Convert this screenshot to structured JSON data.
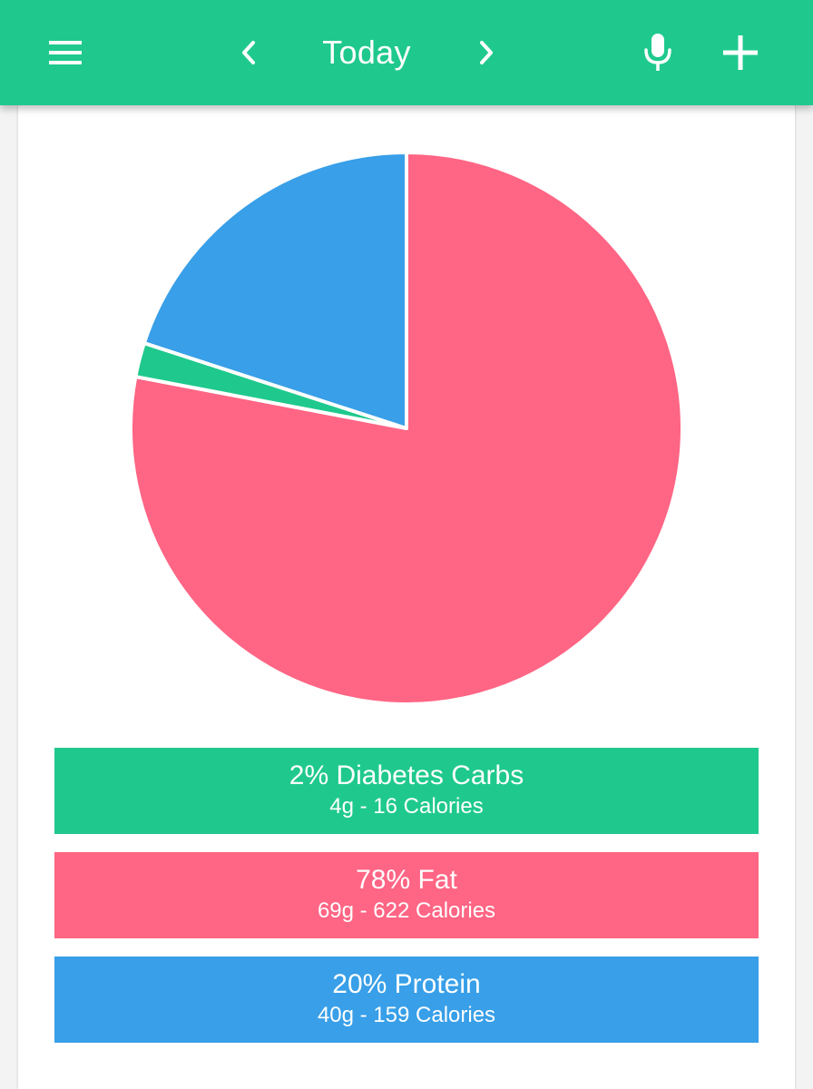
{
  "header": {
    "title": "Today",
    "background": "#1fc98d",
    "icons": {
      "menu": "menu-icon",
      "prev": "chevron-left-icon",
      "next": "chevron-right-icon",
      "mic": "microphone-icon",
      "add": "plus-icon"
    }
  },
  "chart_data": {
    "type": "pie",
    "slices": [
      {
        "label": "Diabetes Carbs",
        "value": 2,
        "color": "#1fc98d"
      },
      {
        "label": "Fat",
        "value": 78,
        "color": "#ff6584"
      },
      {
        "label": "Protein",
        "value": 20,
        "color": "#389fe8"
      }
    ]
  },
  "legend": [
    {
      "title": "2% Diabetes Carbs",
      "detail": "4g - 16 Calories",
      "color": "#1fc98d"
    },
    {
      "title": "78% Fat",
      "detail": "69g - 622 Calories",
      "color": "#ff6584"
    },
    {
      "title": "20% Protein",
      "detail": "40g - 159 Calories",
      "color": "#389fe8"
    }
  ]
}
